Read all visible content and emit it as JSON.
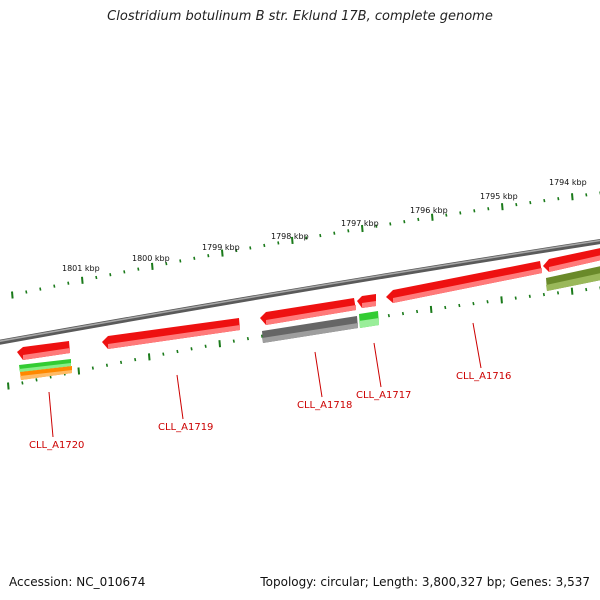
{
  "title": "Clostridium botulinum B str. Eklund 17B, complete genome",
  "footer": {
    "accession": "Accession: NC_010674",
    "summary": "Topology: circular; Length: 3,800,327 bp; Genes: 3,537"
  },
  "ticks": [
    {
      "label": "1801 kbp"
    },
    {
      "label": "1800 kbp"
    },
    {
      "label": "1799 kbp"
    },
    {
      "label": "1798 kbp"
    },
    {
      "label": "1797 kbp"
    },
    {
      "label": "1796 kbp"
    },
    {
      "label": "1795 kbp"
    },
    {
      "label": "1794 kbp"
    }
  ],
  "genes": [
    {
      "label": "CLL_A1720"
    },
    {
      "label": "CLL_A1719"
    },
    {
      "label": "CLL_A1718"
    },
    {
      "label": "CLL_A1717"
    },
    {
      "label": "CLL_A1716"
    }
  ],
  "colors": {
    "backbone": "#7f7f7f",
    "tick": "#1a7a1a",
    "gene_red": "#ee1111",
    "gene_red_light": "#ff7070",
    "gene_gray": "#6a6a6a",
    "gene_green": "#33cc33",
    "gene_orange": "#ff8800",
    "gene_olive": "#6a8a2a",
    "label": "#cc0000"
  }
}
